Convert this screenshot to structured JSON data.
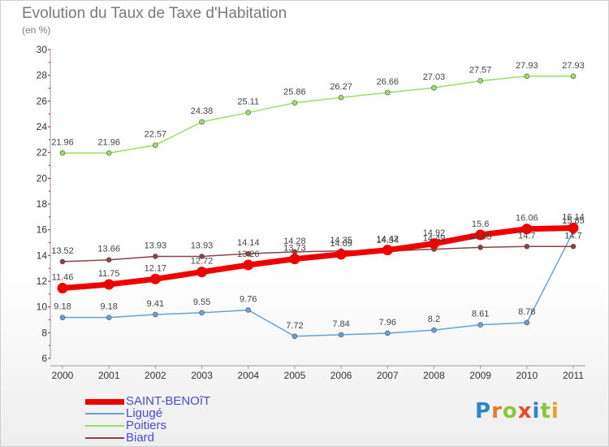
{
  "header": {
    "title": "Evolution du Taux de Taxe d'Habitation",
    "subtitle": "(en %)"
  },
  "brand": {
    "letters": [
      "P",
      "r",
      "o",
      "x",
      "i",
      "t",
      "i"
    ],
    "colors": [
      "#2e86c8",
      "#e8782a",
      "#8cc63f",
      "#e84a2a",
      "#2e86c8",
      "#8cc63f",
      "#e8a02a"
    ]
  },
  "chart_data": {
    "type": "line",
    "title": "Evolution du Taux de Taxe d'Habitation",
    "subtitle": "(en %)",
    "xlabel": "",
    "ylabel": "",
    "x": [
      "2000",
      "2001",
      "2002",
      "2003",
      "2004",
      "2005",
      "2006",
      "2007",
      "2008",
      "2009",
      "2010",
      "2011"
    ],
    "ylim": [
      6,
      30
    ],
    "yticks": [
      "6",
      "8",
      "10",
      "12",
      "14",
      "16",
      "18",
      "20",
      "22",
      "24",
      "26",
      "28",
      "30"
    ],
    "grid": false,
    "legend_position": "bottom-left",
    "series": [
      {
        "name": "SAINT-BENOîT",
        "color": "#ee0000",
        "values": [
          11.46,
          11.75,
          12.17,
          12.72,
          13.26,
          13.73,
          14.09,
          14.42,
          14.92,
          15.6,
          16.06,
          16.14
        ],
        "labels": [
          "11.46",
          "11.75",
          "12.17",
          "12.72",
          "13.26",
          "13.73",
          "14.09",
          "14.42",
          "14.92",
          "15.6",
          "16.06",
          "16.14"
        ]
      },
      {
        "name": "Ligugé",
        "color": "#6aa0d8",
        "values": [
          9.18,
          9.18,
          9.41,
          9.55,
          9.76,
          7.72,
          7.84,
          7.96,
          8.2,
          8.61,
          8.78,
          15.85
        ],
        "labels": [
          "9.18",
          "9.18",
          "9.41",
          "9.55",
          "9.76",
          "7.72",
          "7.84",
          "7.96",
          "8.2",
          "8.61",
          "8.78",
          "15.85"
        ]
      },
      {
        "name": "Poitiers",
        "color": "#99dd66",
        "values": [
          21.96,
          21.96,
          22.57,
          24.38,
          25.11,
          25.86,
          26.27,
          26.66,
          27.03,
          27.57,
          27.93,
          27.93
        ],
        "labels": [
          "21.96",
          "21.96",
          "22.57",
          "24.38",
          "25.11",
          "25.86",
          "26.27",
          "26.66",
          "27.03",
          "27.57",
          "27.93",
          "27.93"
        ]
      },
      {
        "name": "Biard",
        "color": "#884444",
        "values": [
          13.52,
          13.66,
          13.93,
          13.93,
          14.14,
          14.28,
          14.35,
          14.34,
          14.49,
          14.63,
          14.7,
          14.7
        ],
        "labels": [
          "13.52",
          "13.66",
          "13.93",
          "13.93",
          "14.14",
          "14.28",
          "14.35",
          "14.34",
          "14.49",
          "14.63",
          "14.7",
          "14.7"
        ]
      }
    ]
  }
}
